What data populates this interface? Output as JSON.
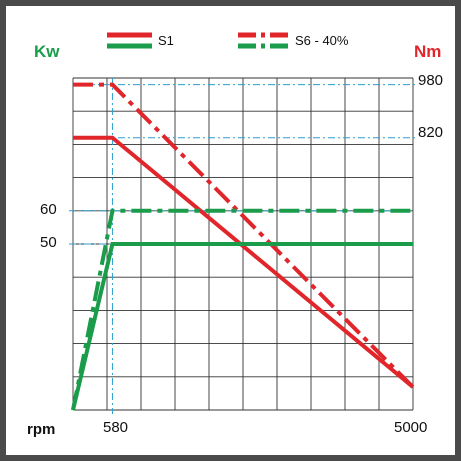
{
  "chart_data": {
    "type": "line",
    "left_axis_label": "Kw",
    "right_axis_label": "Nm",
    "x_axis_label": "rpm",
    "x_ticks": [
      "580",
      "5000"
    ],
    "left_ticks": [
      "60",
      "50"
    ],
    "right_ticks": [
      "980",
      "820"
    ],
    "xlim": [
      0,
      5000
    ],
    "power_ylim_kw": [
      0,
      100
    ],
    "torque_ylim_nm": [
      0,
      1000
    ],
    "legend": [
      "S1",
      "S6 - 40%"
    ],
    "series": [
      {
        "name": "S1",
        "quantity": "torque",
        "unit": "Nm",
        "color": "#e0262b",
        "style": "solid",
        "points": [
          [
            0,
            820
          ],
          [
            580,
            820
          ],
          [
            5000,
            69
          ]
        ]
      },
      {
        "name": "S6 - 40%",
        "quantity": "torque",
        "unit": "Nm",
        "color": "#e0262b",
        "style": "dashdot",
        "points": [
          [
            0,
            980
          ],
          [
            580,
            980
          ],
          [
            5000,
            69
          ]
        ]
      },
      {
        "name": "S1",
        "quantity": "power",
        "unit": "Kw",
        "color": "#1a9c4a",
        "style": "solid",
        "points": [
          [
            0,
            0
          ],
          [
            580,
            50
          ],
          [
            5000,
            50
          ]
        ]
      },
      {
        "name": "S6 - 40%",
        "quantity": "power",
        "unit": "Kw",
        "color": "#1a9c4a",
        "style": "dashdot",
        "points": [
          [
            0,
            0
          ],
          [
            580,
            60
          ],
          [
            5000,
            60
          ]
        ]
      }
    ],
    "grid": true
  }
}
